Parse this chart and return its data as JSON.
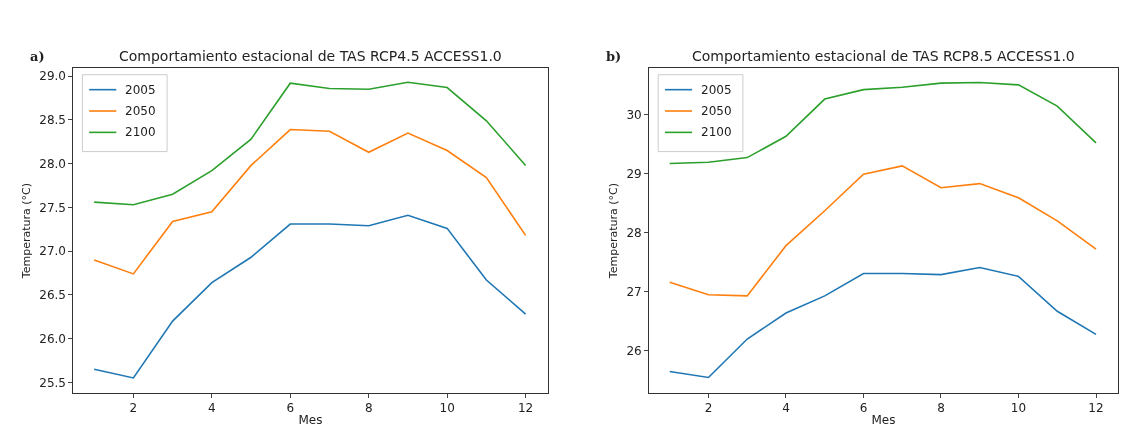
{
  "chart_data": [
    {
      "type": "line",
      "title": "Comportamiento estacional de TAS RCP4.5 ACCESS1.0",
      "annotations": [
        "a)"
      ],
      "xlabel": "Mes",
      "ylabel": "Temperatura (°C)",
      "x": [
        1,
        2,
        3,
        4,
        5,
        6,
        7,
        8,
        9,
        10,
        11,
        12
      ],
      "xlim": [
        0.47,
        12.56
      ],
      "xticks": [
        2,
        4,
        6,
        8,
        10,
        12
      ],
      "ylim": [
        25.38,
        29.09
      ],
      "yticks": [
        {
          "value": 25.5,
          "label": "25.5"
        },
        {
          "value": 26.0,
          "label": "26.0"
        },
        {
          "value": 26.5,
          "label": "26.5"
        },
        {
          "value": 27.0,
          "label": "27.0"
        },
        {
          "value": 27.5,
          "label": "27.5"
        },
        {
          "value": 28.0,
          "label": "28.0"
        },
        {
          "value": 28.5,
          "label": "28.5"
        },
        {
          "value": 29.0,
          "label": "29.0"
        }
      ],
      "legend": "top left",
      "series": [
        {
          "name": "2005",
          "color": "#1f77b4",
          "values": [
            25.65,
            25.55,
            26.2,
            26.64,
            26.93,
            27.31,
            27.31,
            27.29,
            27.41,
            27.26,
            26.67,
            26.28
          ]
        },
        {
          "name": "2050",
          "color": "#ff7f0e",
          "values": [
            26.9,
            26.74,
            27.34,
            27.45,
            27.98,
            28.39,
            28.37,
            28.13,
            28.35,
            28.15,
            27.84,
            27.18
          ]
        },
        {
          "name": "2100",
          "color": "#2ca02c",
          "values": [
            27.56,
            27.53,
            27.65,
            27.92,
            28.28,
            28.92,
            28.86,
            28.85,
            28.93,
            28.87,
            28.49,
            27.98
          ]
        }
      ]
    },
    {
      "type": "line",
      "title": "Comportamiento estacional de TAS RCP8.5 ACCESS1.0",
      "annotations": [
        "b)"
      ],
      "xlabel": "Mes",
      "ylabel": "Temperatura (°C)",
      "x": [
        1,
        2,
        3,
        4,
        5,
        6,
        7,
        8,
        9,
        10,
        11,
        12
      ],
      "xlim": [
        0.47,
        12.56
      ],
      "xticks": [
        2,
        4,
        6,
        8,
        10,
        12
      ],
      "ylim": [
        25.29,
        30.78
      ],
      "yticks": [
        26,
        27,
        28,
        29,
        30
      ],
      "legend": "top left",
      "series": [
        {
          "name": "2005",
          "color": "#1f77b4",
          "values": [
            25.65,
            25.55,
            26.2,
            26.64,
            26.93,
            27.31,
            27.31,
            27.29,
            27.41,
            27.26,
            26.67,
            26.28
          ]
        },
        {
          "name": "2050",
          "color": "#ff7f0e",
          "values": [
            27.16,
            26.95,
            26.93,
            27.78,
            28.37,
            28.99,
            29.13,
            28.76,
            28.83,
            28.59,
            28.2,
            27.72
          ]
        },
        {
          "name": "2100",
          "color": "#2ca02c",
          "values": [
            29.17,
            29.19,
            29.27,
            29.63,
            30.26,
            30.42,
            30.46,
            30.53,
            30.54,
            30.5,
            30.14,
            29.52
          ]
        }
      ]
    }
  ]
}
